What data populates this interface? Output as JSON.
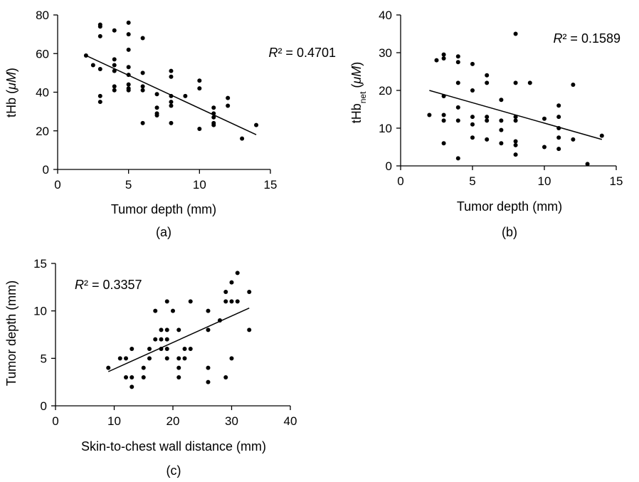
{
  "chart_data": [
    {
      "type": "scatter",
      "panel_label": "(a)",
      "xlabel": "Tumor depth (mm)",
      "ylabel": {
        "main": "tHb (",
        "italic": "μM",
        "end": ")"
      },
      "xlim": [
        0,
        15
      ],
      "ylim": [
        0,
        80
      ],
      "xticks": [
        0,
        5,
        10,
        15
      ],
      "yticks": [
        0,
        20,
        40,
        60,
        80
      ],
      "annotation": {
        "italic": "R",
        "text": "² = 0.4701",
        "position": "top-right"
      },
      "trendline": [
        [
          2,
          59
        ],
        [
          14,
          18
        ]
      ],
      "points": [
        [
          2,
          59
        ],
        [
          2.5,
          54
        ],
        [
          3,
          75
        ],
        [
          3,
          74
        ],
        [
          3,
          69
        ],
        [
          3,
          52
        ],
        [
          3,
          38
        ],
        [
          3,
          35
        ],
        [
          4,
          72
        ],
        [
          4,
          57
        ],
        [
          4,
          54
        ],
        [
          4,
          51
        ],
        [
          4,
          43
        ],
        [
          4,
          41
        ],
        [
          5,
          76
        ],
        [
          5,
          70
        ],
        [
          5,
          62
        ],
        [
          5,
          53
        ],
        [
          5,
          49
        ],
        [
          5,
          44
        ],
        [
          5,
          42
        ],
        [
          5,
          41
        ],
        [
          6,
          68
        ],
        [
          6,
          50
        ],
        [
          6,
          43
        ],
        [
          6,
          41
        ],
        [
          6,
          24
        ],
        [
          7,
          39
        ],
        [
          7,
          32
        ],
        [
          7,
          29
        ],
        [
          7,
          28
        ],
        [
          8,
          51
        ],
        [
          8,
          48
        ],
        [
          8,
          38
        ],
        [
          8,
          35
        ],
        [
          8,
          33
        ],
        [
          8,
          24
        ],
        [
          9,
          38
        ],
        [
          10,
          46
        ],
        [
          10,
          42
        ],
        [
          10,
          21
        ],
        [
          11,
          32
        ],
        [
          11,
          29
        ],
        [
          11,
          27
        ],
        [
          11,
          24
        ],
        [
          11,
          23
        ],
        [
          12,
          37
        ],
        [
          12,
          33
        ],
        [
          13,
          16
        ],
        [
          14,
          23
        ]
      ],
      "grid": false
    },
    {
      "type": "scatter",
      "panel_label": "(b)",
      "xlabel": "Tumor depth (mm)",
      "ylabel": {
        "main": "tHb",
        "sub": "net",
        "pre": " (",
        "italic": "μM",
        "end": ")"
      },
      "xlim": [
        0,
        15
      ],
      "ylim": [
        0,
        40
      ],
      "xticks": [
        0,
        5,
        10,
        15
      ],
      "yticks": [
        0,
        10,
        20,
        30,
        40
      ],
      "annotation": {
        "italic": "R",
        "text": "² = 0.1589",
        "position": "top-right"
      },
      "trendline": [
        [
          2,
          20
        ],
        [
          14,
          7
        ]
      ],
      "points": [
        [
          2,
          13.5
        ],
        [
          2.5,
          28
        ],
        [
          3,
          29.5
        ],
        [
          3,
          28.5
        ],
        [
          3,
          18.5
        ],
        [
          3,
          13.5
        ],
        [
          3,
          12
        ],
        [
          3,
          6
        ],
        [
          4,
          29
        ],
        [
          4,
          27.5
        ],
        [
          4,
          22
        ],
        [
          4,
          15.5
        ],
        [
          4,
          12
        ],
        [
          4,
          2
        ],
        [
          5,
          27
        ],
        [
          5,
          20
        ],
        [
          5,
          13
        ],
        [
          5,
          11
        ],
        [
          5,
          7.5
        ],
        [
          6,
          24
        ],
        [
          6,
          22
        ],
        [
          6,
          13
        ],
        [
          6,
          12
        ],
        [
          6,
          7
        ],
        [
          7,
          17.5
        ],
        [
          7,
          12
        ],
        [
          7,
          9.5
        ],
        [
          7,
          6
        ],
        [
          8,
          35
        ],
        [
          8,
          22
        ],
        [
          8,
          13
        ],
        [
          8,
          12
        ],
        [
          8,
          6.5
        ],
        [
          8,
          5.5
        ],
        [
          8,
          3
        ],
        [
          9,
          22
        ],
        [
          10,
          12.5
        ],
        [
          10,
          5
        ],
        [
          11,
          16
        ],
        [
          11,
          13
        ],
        [
          11,
          10
        ],
        [
          11,
          7.5
        ],
        [
          11,
          4.5
        ],
        [
          12,
          21.5
        ],
        [
          12,
          7
        ],
        [
          13,
          0.5
        ],
        [
          14,
          8
        ]
      ],
      "grid": false
    },
    {
      "type": "scatter",
      "panel_label": "(c)",
      "xlabel": "Skin-to-chest wall distance (mm)",
      "ylabel": {
        "main": "Tumor depth (mm)"
      },
      "xlim": [
        0,
        40
      ],
      "ylim": [
        0,
        15
      ],
      "xticks": [
        0,
        10,
        20,
        30,
        40
      ],
      "yticks": [
        0,
        5,
        10,
        15
      ],
      "annotation": {
        "italic": "R",
        "text": "² = 0.3357",
        "position": "top-left"
      },
      "trendline": [
        [
          9,
          3.6
        ],
        [
          33,
          10.3
        ]
      ],
      "points": [
        [
          9,
          4
        ],
        [
          11,
          5
        ],
        [
          12,
          5
        ],
        [
          12,
          3
        ],
        [
          13,
          6
        ],
        [
          13,
          3
        ],
        [
          13,
          2
        ],
        [
          15,
          4
        ],
        [
          15,
          3
        ],
        [
          16,
          6
        ],
        [
          16,
          5
        ],
        [
          17,
          10
        ],
        [
          17,
          7
        ],
        [
          18,
          8
        ],
        [
          18,
          7
        ],
        [
          18,
          6
        ],
        [
          19,
          11
        ],
        [
          19,
          8
        ],
        [
          19,
          7
        ],
        [
          19,
          6
        ],
        [
          19,
          5
        ],
        [
          20,
          10
        ],
        [
          21,
          8
        ],
        [
          21,
          5
        ],
        [
          21,
          4
        ],
        [
          21,
          3
        ],
        [
          22,
          6
        ],
        [
          22,
          5
        ],
        [
          23,
          11
        ],
        [
          23,
          6
        ],
        [
          26,
          10
        ],
        [
          26,
          8
        ],
        [
          26,
          4
        ],
        [
          26,
          2.5
        ],
        [
          28,
          9
        ],
        [
          29,
          12
        ],
        [
          29,
          11
        ],
        [
          29,
          3
        ],
        [
          30,
          13
        ],
        [
          30,
          11
        ],
        [
          30,
          5
        ],
        [
          31,
          14
        ],
        [
          31,
          11
        ],
        [
          33,
          12
        ],
        [
          33,
          8
        ]
      ],
      "grid": false
    }
  ]
}
